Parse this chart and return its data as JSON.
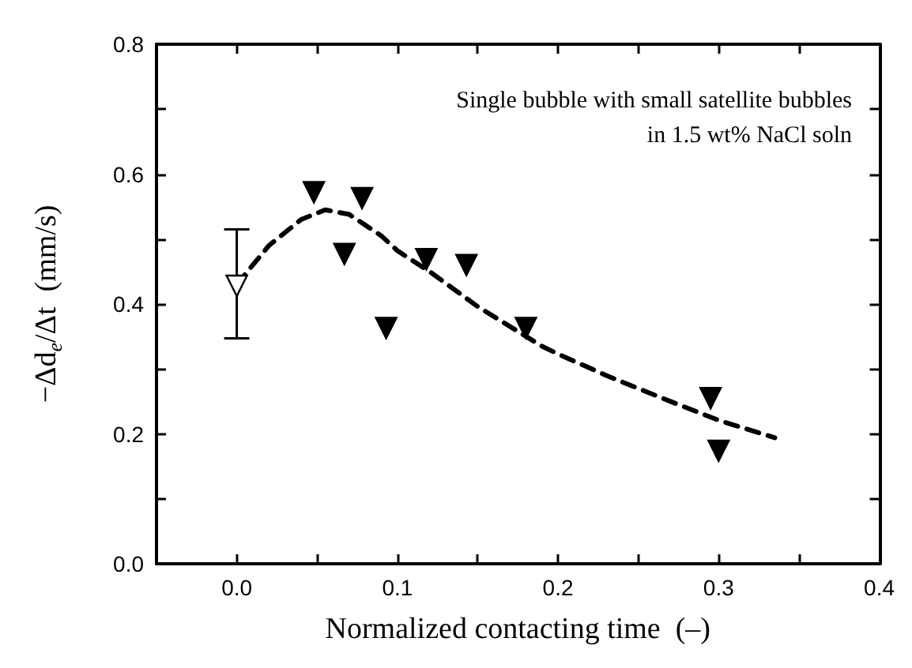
{
  "chart_data": {
    "type": "scatter",
    "xlabel": "Normalized contacting time  (–)",
    "ylabel": "−Δd$_{e}$/Δt  (mm/s)",
    "annotations": [
      "Single bubble with small satellite bubbles\nin 1.5 wt% NaCl soln"
    ],
    "xlim": [
      -0.05,
      0.4
    ],
    "xticks": [
      {
        "value": -0.05,
        "label": null
      },
      {
        "value": 0,
        "label": "0.0"
      },
      {
        "value": 0.05,
        "label": null
      },
      0.1,
      {
        "value": 0.15,
        "label": null
      },
      0.2,
      {
        "value": 0.25,
        "label": null
      },
      0.3,
      {
        "value": 0.35,
        "label": null
      },
      0.4
    ],
    "ylim": [
      0,
      0.8
    ],
    "yticks": [
      {
        "value": 0,
        "label": "0.0"
      },
      {
        "value": 0.1,
        "label": null
      },
      0.2,
      {
        "value": 0.3,
        "label": null
      },
      0.4,
      {
        "value": 0.5,
        "label": null
      },
      0.6,
      {
        "value": 0.7,
        "label": null
      },
      0.8
    ],
    "grid": false,
    "marker": "triangle",
    "series": [
      {
        "color": "#ffffff",
        "x": [
          0
        ],
        "values": [
          0.428
        ],
        "errors": [
          [
            0.347,
            0.515
          ]
        ]
      },
      {
        "color": "#000000",
        "x": [
          0.048,
          0.078,
          0.067,
          0.093,
          0.118,
          0.143,
          0.18,
          0.295,
          0.3
        ],
        "values": [
          0.572,
          0.563,
          0.477,
          0.363,
          0.469,
          0.46,
          0.363,
          0.255,
          0.174
        ]
      },
      {
        "type": "line",
        "color": "#000000",
        "line_style": "dashed",
        "marker": "none",
        "x": [
          0,
          0.02,
          0.04,
          0.055,
          0.07,
          0.09,
          0.1,
          0.12,
          0.15,
          0.19,
          0.2,
          0.23,
          0.27,
          0.3,
          0.335
        ],
        "values": [
          0.43,
          0.49,
          0.53,
          0.545,
          0.538,
          0.505,
          0.482,
          0.45,
          0.396,
          0.335,
          0.323,
          0.29,
          0.25,
          0.221,
          0.194
        ]
      }
    ]
  }
}
